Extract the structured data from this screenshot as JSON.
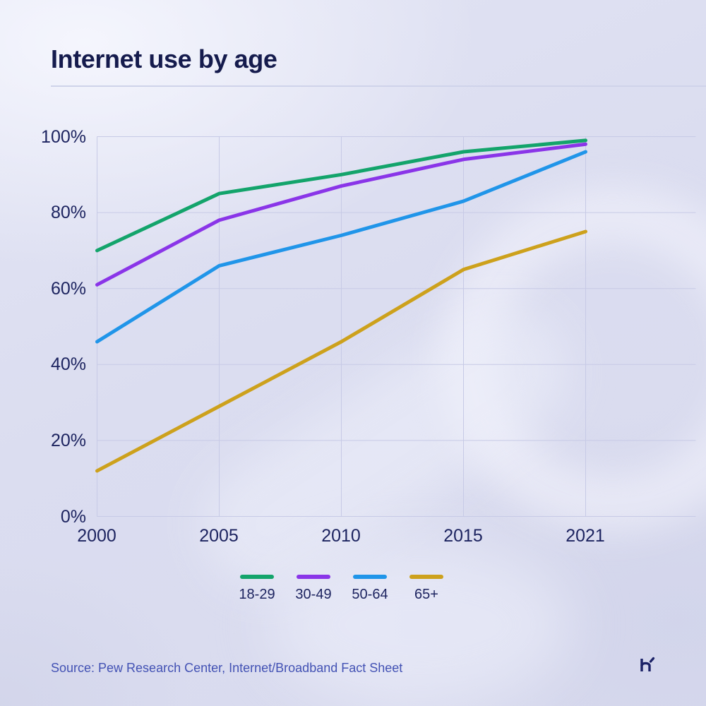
{
  "chart_data": {
    "type": "line",
    "title": "Internet use by age",
    "x": [
      "2000",
      "2005",
      "2010",
      "2015",
      "2021"
    ],
    "series": [
      {
        "name": "18-29",
        "color": "#13a46b",
        "values": [
          70,
          85,
          90,
          96,
          99
        ]
      },
      {
        "name": "30-49",
        "color": "#8a35e8",
        "values": [
          61,
          78,
          87,
          94,
          98
        ]
      },
      {
        "name": "50-64",
        "color": "#2095e9",
        "values": [
          46,
          66,
          74,
          83,
          96
        ]
      },
      {
        "name": "65+",
        "color": "#cda11c",
        "values": [
          12,
          29,
          46,
          65,
          75
        ]
      }
    ],
    "ylim": [
      0,
      100
    ],
    "yticks": [
      {
        "label": "100%",
        "value": 100
      },
      {
        "label": "80%",
        "value": 80
      },
      {
        "label": "60%",
        "value": 60
      },
      {
        "label": "40%",
        "value": 40
      },
      {
        "label": "20%",
        "value": 20
      },
      {
        "label": "0%",
        "value": 0
      }
    ],
    "xlabel": "",
    "ylabel": "",
    "grid": true,
    "legend_position": "bottom"
  },
  "footer": {
    "source": "Source: Pew Research Center, Internet/Broadband Fact Sheet"
  },
  "icons": {
    "brand_logo": "h-with-accent-logo"
  },
  "colors": {
    "background": "#dadcee",
    "title": "#151b4d",
    "tick": "#1d2460",
    "gridline": "#c7cae6",
    "divider": "#cfd3ea",
    "source": "#4352b4",
    "logo": "#1b2166"
  }
}
